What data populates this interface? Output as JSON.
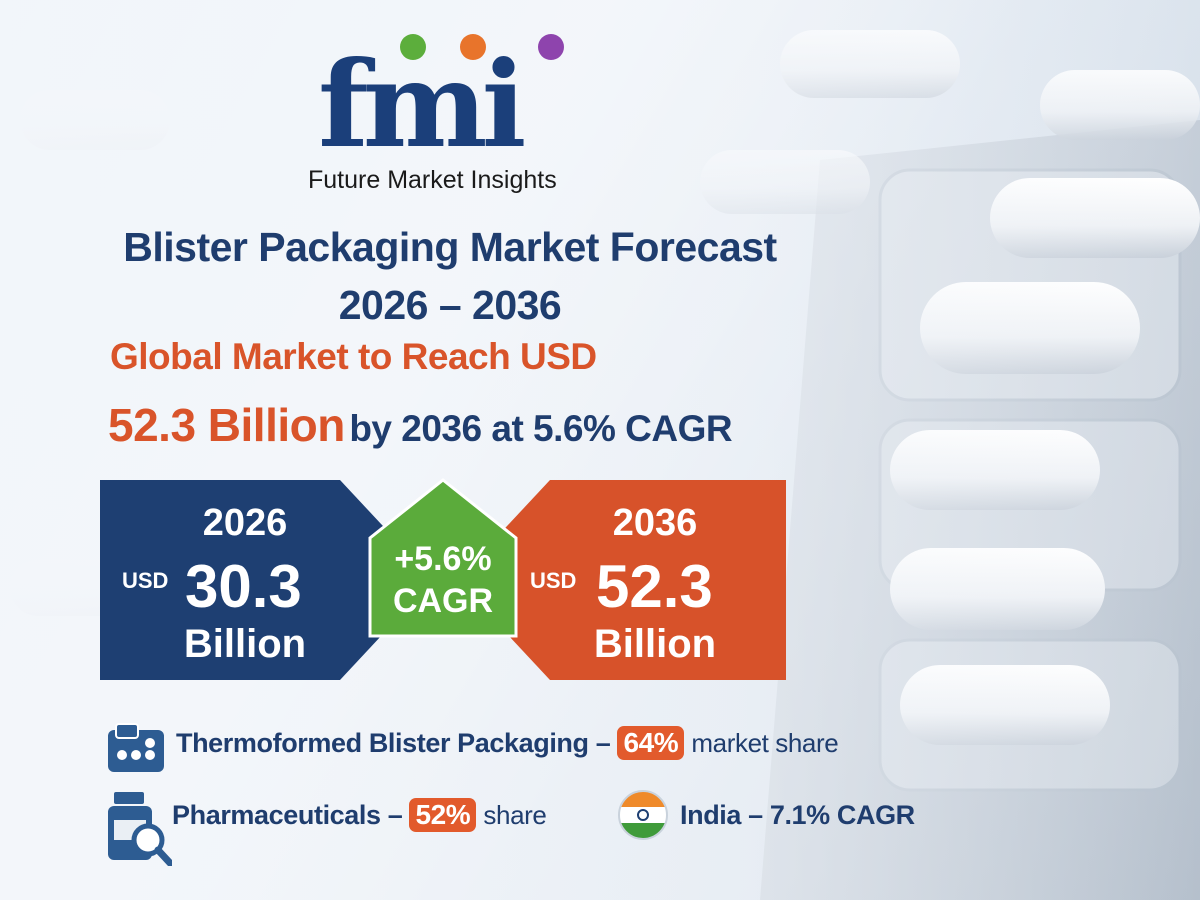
{
  "logo": {
    "letters": "fmi",
    "tagline": "Future Market Insights"
  },
  "title": {
    "line1": "Blister Packaging Market Forecast",
    "line2": "2026 – 2036"
  },
  "subtitle": {
    "line1": "Global Market to Reach USD",
    "highlight": "52.3 Billion",
    "rest": "by 2036 at 5.6% CAGR"
  },
  "start": {
    "year": "2026",
    "currency": "USD",
    "amount": "30.3",
    "unit": "Billion"
  },
  "cagr": {
    "value": "+5.6%",
    "label": "CAGR"
  },
  "end": {
    "year": "2036",
    "currency": "USD",
    "amount": "52.3",
    "unit": "Billion"
  },
  "features": {
    "thermo": {
      "label": "Thermoformed Blister Packaging –",
      "pct": "64%",
      "tail": "market share"
    },
    "pharma": {
      "label": "Pharmaceuticals –",
      "pct": "52%",
      "tail": "share"
    },
    "india": {
      "label": "India – 7.1% CAGR"
    }
  },
  "icons": {
    "thermo": "blister-pack-icon",
    "pharma": "pill-bottle-magnifier-icon",
    "india": "india-flag-icon"
  },
  "colors": {
    "navy": "#1f3d6e",
    "orange": "#d9542a",
    "green": "#5cae3c",
    "purple": "#8e44ad"
  }
}
